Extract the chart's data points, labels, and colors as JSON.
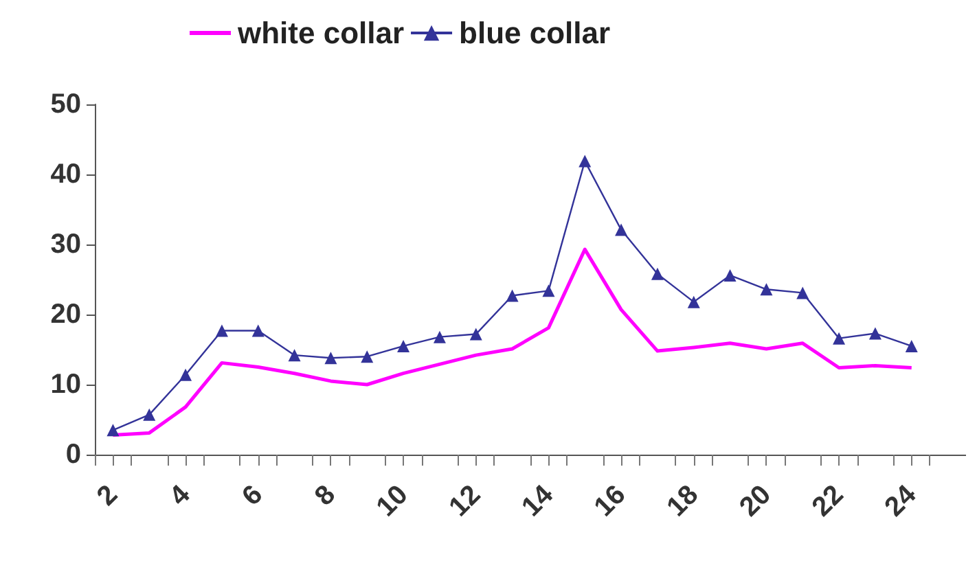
{
  "chart_data": {
    "type": "line",
    "x": [
      2,
      3,
      4,
      5,
      6,
      7,
      8,
      9,
      10,
      11,
      12,
      13,
      14,
      15,
      16,
      17,
      18,
      19,
      20,
      21,
      22,
      23,
      24
    ],
    "xlim": [
      1.5,
      25.5
    ],
    "xticks": [
      {
        "value": 1.5,
        "label": null
      },
      2,
      {
        "value": 2.5,
        "label": null
      },
      {
        "value": 3.5,
        "label": null
      },
      4,
      {
        "value": 4.5,
        "label": null
      },
      {
        "value": 5.5,
        "label": null
      },
      6,
      {
        "value": 6.5,
        "label": null
      },
      {
        "value": 7.5,
        "label": null
      },
      8,
      {
        "value": 8.5,
        "label": null
      },
      {
        "value": 9.5,
        "label": null
      },
      10,
      {
        "value": 10.5,
        "label": null
      },
      {
        "value": 11.5,
        "label": null
      },
      12,
      {
        "value": 12.5,
        "label": null
      },
      {
        "value": 13.5,
        "label": null
      },
      14,
      {
        "value": 14.5,
        "label": null
      },
      {
        "value": 15.5,
        "label": null
      },
      16,
      {
        "value": 16.5,
        "label": null
      },
      {
        "value": 17.5,
        "label": null
      },
      18,
      {
        "value": 18.5,
        "label": null
      },
      {
        "value": 19.5,
        "label": null
      },
      20,
      {
        "value": 20.5,
        "label": null
      },
      {
        "value": 21.5,
        "label": null
      },
      22,
      {
        "value": 22.5,
        "label": null
      },
      {
        "value": 23.5,
        "label": null
      },
      24,
      {
        "value": 24.5,
        "label": null
      }
    ],
    "series": [
      {
        "name": "white collar",
        "color": "#ff00ff",
        "marker": "none",
        "values": [
          2.8,
          3.1,
          6.8,
          13.1,
          12.5,
          11.6,
          10.5,
          10,
          11.6,
          12.9,
          14.2,
          15.1,
          18.1,
          29.3,
          20.7,
          14.8,
          15.3,
          15.9,
          15.1,
          15.9,
          12.4,
          12.7,
          12.4
        ]
      },
      {
        "name": "blue collar",
        "color": "#333399",
        "marker": "triangle",
        "values": [
          3.5,
          5.7,
          11.4,
          17.7,
          17.7,
          14.2,
          13.8,
          14,
          15.5,
          16.8,
          17.2,
          22.7,
          23.4,
          41.9,
          32.1,
          25.8,
          21.8,
          25.6,
          23.6,
          23.1,
          16.6,
          17.3,
          15.5
        ]
      }
    ],
    "ylim": [
      0,
      50
    ],
    "yticks": [
      0,
      10,
      20,
      30,
      40,
      50
    ],
    "grid": false,
    "legend": "top"
  }
}
